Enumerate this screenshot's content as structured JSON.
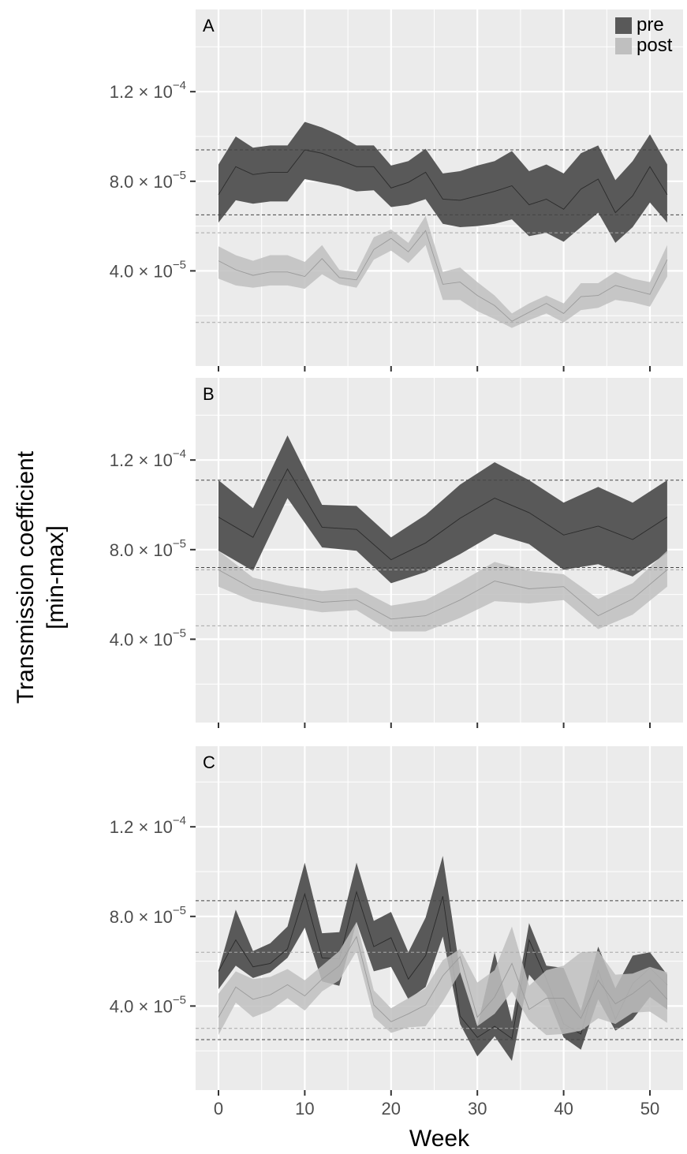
{
  "chart_data": {
    "type": "area",
    "ylabel_lines": [
      "Transmission coefficient",
      "[min-max]"
    ],
    "xlabel": "Week",
    "xlim": [
      0,
      52
    ],
    "ylim": [
      0,
      0.00015
    ],
    "x_ticks": [
      0,
      10,
      20,
      30,
      40,
      50
    ],
    "y_ticks": [
      {
        "value": 4e-05,
        "mantissa": "4.0",
        "exponent": "−5"
      },
      {
        "value": 8e-05,
        "mantissa": "8.0",
        "exponent": "−5"
      },
      {
        "value": 0.00012,
        "mantissa": "1.2",
        "exponent": "−4"
      }
    ],
    "times_symbol": "×",
    "base": "10",
    "grid": true,
    "legend": {
      "position": "top-right",
      "entries": [
        {
          "label": "pre",
          "color": "#595959"
        },
        {
          "label": "post",
          "color": "#bfbfbf"
        }
      ]
    },
    "colors": {
      "panel_bg": "#ebebeb",
      "grid": "#ffffff",
      "pre_fill": "#595959",
      "post_fill": "#bfbfbf",
      "pre_line": "#2b2b2b",
      "post_line": "#9a9a9a",
      "pre_ref": "#444444",
      "post_ref": "#a8a8a8"
    },
    "panels": [
      {
        "label": "A",
        "ref_pre": [
          6.5e-05,
          9.4e-05
        ],
        "ref_post": [
          1.7e-05,
          5.7e-05
        ],
        "series": [
          {
            "name": "pre",
            "x": [
              0,
              2,
              4,
              6,
              8,
              10,
              12,
              14,
              16,
              18,
              20,
              22,
              24,
              26,
              28,
              30,
              32,
              34,
              36,
              38,
              40,
              42,
              44,
              46,
              48,
              50,
              52
            ],
            "min": [
              6.15e-05,
              7.15e-05,
              7e-05,
              7.1e-05,
              7.1e-05,
              8.1e-05,
              7.95e-05,
              7.8e-05,
              7.55e-05,
              7.6e-05,
              6.85e-05,
              6.95e-05,
              7.2e-05,
              6.1e-05,
              5.95e-05,
              6e-05,
              6.1e-05,
              6.3e-05,
              5.55e-05,
              5.7e-05,
              5.3e-05,
              5.95e-05,
              6.6e-05,
              5.25e-05,
              5.95e-05,
              7.05e-05,
              6.15e-05
            ],
            "mid": [
              7.4e-05,
              8.65e-05,
              8.3e-05,
              8.4e-05,
              8.4e-05,
              9.4e-05,
              9.25e-05,
              8.95e-05,
              8.65e-05,
              8.65e-05,
              7.7e-05,
              7.95e-05,
              8.4e-05,
              7.2e-05,
              7.15e-05,
              7.35e-05,
              7.55e-05,
              7.8e-05,
              6.95e-05,
              7.2e-05,
              6.75e-05,
              7.65e-05,
              8.1e-05,
              6.6e-05,
              7.35e-05,
              8.65e-05,
              7.4e-05
            ],
            "max": [
              8.75e-05,
              0.0001,
              9.5e-05,
              9.6e-05,
              9.6e-05,
              0.0001065,
              0.000104,
              0.0001005,
              9.6e-05,
              9.6e-05,
              8.7e-05,
              8.9e-05,
              9.45e-05,
              8.35e-05,
              8.45e-05,
              8.7e-05,
              8.9e-05,
              9.35e-05,
              8.45e-05,
              8.75e-05,
              8.35e-05,
              9.25e-05,
              9.6e-05,
              8.05e-05,
              8.9e-05,
              0.000101,
              8.75e-05
            ]
          },
          {
            "name": "post",
            "x": [
              0,
              2,
              4,
              6,
              8,
              10,
              12,
              14,
              16,
              18,
              20,
              22,
              24,
              26,
              28,
              30,
              32,
              34,
              36,
              38,
              40,
              42,
              44,
              46,
              48,
              50,
              52
            ],
            "min": [
              3.65e-05,
              3.35e-05,
              3.25e-05,
              3.35e-05,
              3.35e-05,
              3.2e-05,
              3.85e-05,
              3.4e-05,
              3.25e-05,
              4.5e-05,
              4.9e-05,
              4.35e-05,
              5.15e-05,
              2.7e-05,
              2.7e-05,
              2.2e-05,
              1.85e-05,
              1.45e-05,
              1.8e-05,
              2.1e-05,
              1.7e-05,
              2.25e-05,
              2.35e-05,
              2.7e-05,
              2.6e-05,
              2.4e-05,
              3.75e-05
            ],
            "mid": [
              4.45e-05,
              4.05e-05,
              3.8e-05,
              3.95e-05,
              3.95e-05,
              3.75e-05,
              4.55e-05,
              3.7e-05,
              3.6e-05,
              4.95e-05,
              5.45e-05,
              4.85e-05,
              5.8e-05,
              3.4e-05,
              3.5e-05,
              2.9e-05,
              2.45e-05,
              1.75e-05,
              2.15e-05,
              2.55e-05,
              2.1e-05,
              2.85e-05,
              2.9e-05,
              3.35e-05,
              3.15e-05,
              2.95e-05,
              4.5e-05
            ],
            "max": [
              5.1e-05,
              4.7e-05,
              4.45e-05,
              4.7e-05,
              4.7e-05,
              4.4e-05,
              5.15e-05,
              4.05e-05,
              3.95e-05,
              5.5e-05,
              5.85e-05,
              5.25e-05,
              6.45e-05,
              3.95e-05,
              4.15e-05,
              3.5e-05,
              2.9e-05,
              2.1e-05,
              2.55e-05,
              2.9e-05,
              2.55e-05,
              3.45e-05,
              3.45e-05,
              3.95e-05,
              3.65e-05,
              3.5e-05,
              5.15e-05
            ]
          }
        ]
      },
      {
        "label": "B",
        "ref_pre": [
          7.2e-05,
          0.000111
        ],
        "ref_post": [
          4.6e-05,
          7.1e-05
        ],
        "series": [
          {
            "name": "pre",
            "x": [
              0,
              4,
              8,
              12,
              16,
              20,
              24,
              28,
              32,
              36,
              40,
              44,
              48,
              52
            ],
            "min": [
              7.95e-05,
              7.05e-05,
              0.000103,
              8.1e-05,
              7.95e-05,
              6.5e-05,
              7e-05,
              7.8e-05,
              8.7e-05,
              8.25e-05,
              7.1e-05,
              7.35e-05,
              6.8e-05,
              7.85e-05
            ],
            "mid": [
              9.45e-05,
              8.55e-05,
              0.000116,
              9e-05,
              8.9e-05,
              7.55e-05,
              8.3e-05,
              9.4e-05,
              0.000103,
              9.65e-05,
              8.65e-05,
              9.05e-05,
              8.45e-05,
              9.45e-05
            ],
            "max": [
              0.000111,
              9.85e-05,
              0.000131,
              0.0001,
              9.95e-05,
              8.55e-05,
              9.55e-05,
              0.000109,
              0.000119,
              0.000111,
              0.000101,
              0.000108,
              0.000101,
              0.000111
            ]
          },
          {
            "name": "post",
            "x": [
              0,
              4,
              8,
              12,
              16,
              20,
              24,
              28,
              32,
              36,
              40,
              44,
              48,
              52
            ],
            "min": [
              6.35e-05,
              5.7e-05,
              5.45e-05,
              5.2e-05,
              5.3e-05,
              4.35e-05,
              4.35e-05,
              4.95e-05,
              5.7e-05,
              5.6e-05,
              5.75e-05,
              4.45e-05,
              5.1e-05,
              6.35e-05
            ],
            "mid": [
              7.1e-05,
              6.25e-05,
              5.95e-05,
              5.65e-05,
              5.75e-05,
              4.9e-05,
              5.05e-05,
              5.75e-05,
              6.6e-05,
              6.25e-05,
              6.35e-05,
              5.05e-05,
              5.8e-05,
              7.1e-05
            ],
            "max": [
              7.95e-05,
              6.75e-05,
              6.4e-05,
              6.15e-05,
              6.3e-05,
              5.5e-05,
              5.75e-05,
              6.55e-05,
              7.45e-05,
              7.05e-05,
              6.9e-05,
              5.8e-05,
              6.5e-05,
              7.95e-05
            ]
          }
        ]
      },
      {
        "label": "C",
        "ref_pre": [
          2.5e-05,
          8.7e-05
        ],
        "ref_post": [
          3e-05,
          6.4e-05
        ],
        "series": [
          {
            "name": "pre",
            "x": [
              0,
              2,
              4,
              6,
              8,
              10,
              12,
              14,
              16,
              18,
              20,
              22,
              24,
              26,
              28,
              30,
              32,
              34,
              36,
              38,
              40,
              42,
              44,
              46,
              48,
              50,
              52
            ],
            "min": [
              4.75e-05,
              5.8e-05,
              5.25e-05,
              5.5e-05,
              6.15e-05,
              7.5e-05,
              5.1e-05,
              4.9e-05,
              7.75e-05,
              5.55e-05,
              5.75e-05,
              4.3e-05,
              4.85e-05,
              7.1e-05,
              3.2e-05,
              1.75e-05,
              2.65e-05,
              1.55e-05,
              5.4e-05,
              4.5e-05,
              2.6e-05,
              2.05e-05,
              4.3e-05,
              2.9e-05,
              3.4e-05,
              4.4e-05,
              3.85e-05
            ],
            "mid": [
              5.55e-05,
              6.95e-05,
              5.75e-05,
              5.9e-05,
              6.55e-05,
              9e-05,
              6.15e-05,
              6.1e-05,
              9.1e-05,
              6.65e-05,
              7.05e-05,
              5.2e-05,
              6.25e-05,
              8.9e-05,
              3.55e-05,
              2.6e-05,
              3.1e-05,
              2.55e-05,
              6.95e-05,
              5.2e-05,
              3.2e-05,
              2.75e-05,
              5.6e-05,
              3.4e-05,
              5e-05,
              5.7e-05,
              4.95e-05
            ],
            "max": [
              5.6e-05,
              8.3e-05,
              6.45e-05,
              6.8e-05,
              7.55e-05,
              0.000104,
              7.25e-05,
              7.3e-05,
              0.000104,
              7.8e-05,
              8.2e-05,
              6.4e-05,
              7.95e-05,
              0.000107,
              5.55e-05,
              3.1e-05,
              6.4e-05,
              3.3e-05,
              7.7e-05,
              5.8e-05,
              5.7e-05,
              3.8e-05,
              6.65e-05,
              4.8e-05,
              6.25e-05,
              6.4e-05,
              5.4e-05
            ]
          },
          {
            "name": "post",
            "x": [
              0,
              2,
              4,
              6,
              8,
              10,
              12,
              14,
              16,
              18,
              20,
              22,
              24,
              26,
              28,
              30,
              32,
              34,
              36,
              38,
              40,
              42,
              44,
              46,
              48,
              50,
              52
            ],
            "min": [
              2.7e-05,
              4.15e-05,
              3.5e-05,
              3.8e-05,
              4.35e-05,
              3.8e-05,
              4.65e-05,
              5.15e-05,
              6.45e-05,
              3.5e-05,
              2.8e-05,
              3.05e-05,
              3.1e-05,
              4.2e-05,
              5.5e-05,
              3.1e-05,
              3.65e-05,
              4.65e-05,
              3.35e-05,
              2.7e-05,
              2.75e-05,
              2.9e-05,
              3.45e-05,
              3.2e-05,
              3.7e-05,
              3.75e-05,
              3.25e-05
            ],
            "mid": [
              3.5e-05,
              4.85e-05,
              4.3e-05,
              4.5e-05,
              4.95e-05,
              4.45e-05,
              5.2e-05,
              5.8e-05,
              7.1e-05,
              4.05e-05,
              3.3e-05,
              3.65e-05,
              4.05e-05,
              5.35e-05,
              6.2e-05,
              3.5e-05,
              4.4e-05,
              5.9e-05,
              3.85e-05,
              4.35e-05,
              4.35e-05,
              3.45e-05,
              5.15e-05,
              4.1e-05,
              4.55e-05,
              5.15e-05,
              4.3e-05
            ],
            "max": [
              4.55e-05,
              5.55e-05,
              5.2e-05,
              5.3e-05,
              5.65e-05,
              5.15e-05,
              5.8e-05,
              6.45e-05,
              7.75e-05,
              4.7e-05,
              3.9e-05,
              4.35e-05,
              4.8e-05,
              6.05e-05,
              6.55e-05,
              5.05e-05,
              5.6e-05,
              7.55e-05,
              4.9e-05,
              5.6e-05,
              5.8e-05,
              6.4e-05,
              6.45e-05,
              5.4e-05,
              5.45e-05,
              5.75e-05,
              5.5e-05
            ]
          }
        ]
      }
    ]
  }
}
